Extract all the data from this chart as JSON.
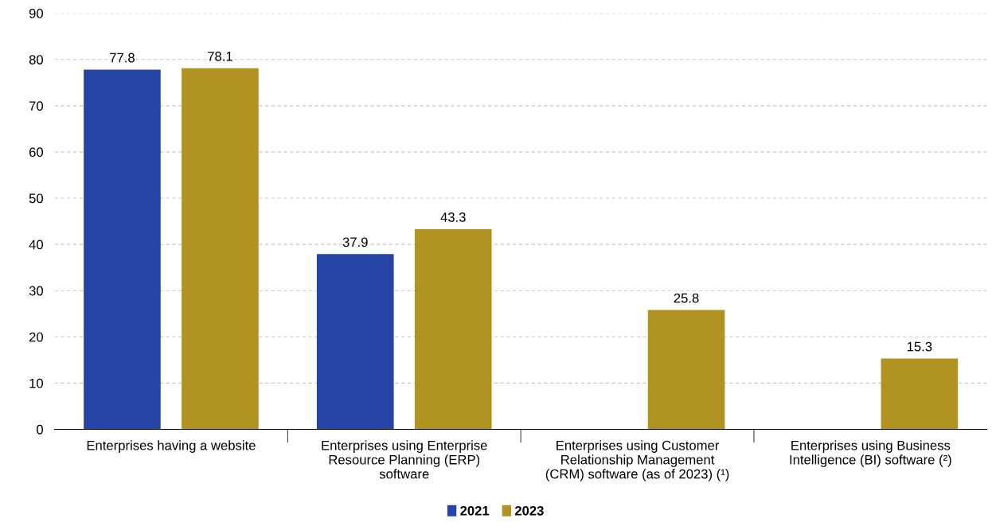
{
  "chart_data": {
    "type": "bar",
    "categories": [
      "Enterprises having a website",
      "Enterprises using Enterprise\nResource Planning (ERP)\nsoftware",
      "Enterprises using Customer\nRelationship Management\n(CRM) software (as of 2023) (¹)",
      "Enterprises using Business\nIntelligence (BI) software (²)"
    ],
    "series": [
      {
        "name": "2021",
        "color": "#2644a6",
        "values": [
          77.8,
          37.9,
          null,
          null
        ]
      },
      {
        "name": "2023",
        "color": "#b09322",
        "values": [
          78.1,
          43.3,
          25.8,
          15.3
        ]
      }
    ],
    "ylim": [
      0,
      90
    ],
    "yticks": [
      0,
      10,
      20,
      30,
      40,
      50,
      60,
      70,
      80,
      90
    ],
    "grid": "y",
    "legend": "bottom",
    "data_labels": true
  }
}
